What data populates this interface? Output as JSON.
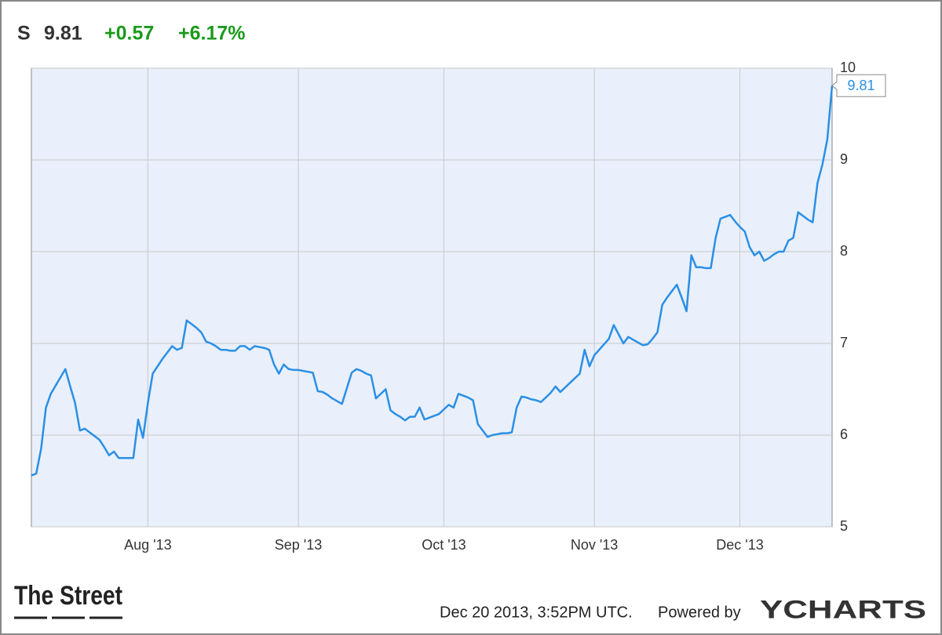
{
  "header": {
    "symbol": "S",
    "price": "9.81",
    "change": "+0.57",
    "change_pct": "+6.17%"
  },
  "chart_data": {
    "type": "line",
    "categories": [
      null,
      null,
      null,
      null,
      null,
      null,
      null,
      null,
      null,
      null,
      null,
      null,
      null,
      null,
      null,
      null,
      null,
      null,
      null,
      null,
      null,
      null,
      null,
      null,
      "Aug '13",
      null,
      null,
      null,
      null,
      null,
      null,
      null,
      null,
      null,
      null,
      null,
      null,
      null,
      null,
      null,
      null,
      null,
      null,
      null,
      null,
      null,
      null,
      null,
      null,
      null,
      null,
      null,
      null,
      null,
      null,
      "Sep '13",
      null,
      null,
      null,
      null,
      null,
      null,
      null,
      null,
      null,
      null,
      null,
      null,
      null,
      null,
      null,
      null,
      null,
      null,
      null,
      null,
      null,
      null,
      null,
      null,
      null,
      null,
      null,
      null,
      null,
      "Oct '13",
      null,
      null,
      null,
      null,
      null,
      null,
      null,
      null,
      null,
      null,
      null,
      null,
      null,
      null,
      null,
      null,
      null,
      null,
      null,
      null,
      null,
      null,
      null,
      null,
      null,
      null,
      null,
      null,
      null,
      null,
      "Nov '13",
      null,
      null,
      null,
      null,
      null,
      null,
      null,
      null,
      null,
      null,
      null,
      null,
      null,
      null,
      null,
      null,
      null,
      null,
      null,
      null,
      null,
      null,
      null,
      null,
      null,
      null,
      null,
      null,
      null,
      "Dec '13",
      null,
      null,
      null,
      null,
      null,
      null,
      null,
      null,
      null,
      null,
      null,
      null,
      null,
      null,
      null,
      null,
      null,
      null,
      null
    ],
    "values": [
      5.56,
      5.58,
      5.85,
      6.3,
      6.45,
      6.54,
      6.63,
      6.72,
      6.53,
      6.35,
      6.05,
      6.07,
      6.03,
      5.99,
      5.95,
      5.87,
      5.78,
      5.82,
      5.75,
      5.75,
      5.75,
      5.75,
      6.17,
      5.97,
      6.35,
      6.67,
      6.75,
      6.83,
      6.9,
      6.97,
      6.93,
      6.95,
      7.25,
      7.21,
      7.17,
      7.12,
      7.02,
      7.0,
      6.97,
      6.93,
      6.93,
      6.92,
      6.92,
      6.97,
      6.97,
      6.93,
      6.97,
      6.96,
      6.95,
      6.93,
      6.77,
      6.67,
      6.77,
      6.72,
      6.71,
      6.71,
      6.7,
      6.69,
      6.68,
      6.48,
      6.47,
      6.44,
      6.4,
      6.37,
      6.34,
      6.51,
      6.68,
      6.72,
      6.7,
      6.67,
      6.65,
      6.4,
      6.45,
      6.5,
      6.27,
      6.23,
      6.2,
      6.16,
      6.2,
      6.2,
      6.3,
      6.17,
      6.19,
      6.21,
      6.23,
      6.28,
      6.33,
      6.3,
      6.45,
      6.43,
      6.41,
      6.38,
      6.12,
      6.05,
      5.98,
      6.0,
      6.01,
      6.02,
      6.02,
      6.03,
      6.3,
      6.42,
      6.41,
      6.39,
      6.38,
      6.36,
      6.41,
      6.46,
      6.53,
      6.47,
      6.52,
      6.57,
      6.62,
      6.67,
      6.93,
      6.75,
      6.87,
      6.93,
      6.99,
      7.05,
      7.2,
      7.1,
      7.0,
      7.07,
      7.04,
      7.01,
      6.98,
      6.99,
      7.05,
      7.12,
      7.42,
      7.5,
      7.57,
      7.64,
      7.5,
      7.35,
      7.96,
      7.83,
      7.83,
      7.82,
      7.82,
      8.15,
      8.36,
      8.38,
      8.4,
      8.33,
      8.27,
      8.22,
      8.05,
      7.96,
      8.0,
      7.9,
      7.93,
      7.97,
      8.0,
      8.0,
      8.12,
      8.15,
      8.43,
      8.39,
      8.35,
      8.32,
      8.75,
      8.95,
      9.22,
      9.81
    ],
    "color": "#2b8fe6",
    "ylim": [
      5,
      10
    ],
    "yticks": [
      5,
      6,
      7,
      8,
      9,
      10
    ],
    "grid": true
  },
  "footer": {
    "logo": "The Street",
    "timestamp": "Dec 20 2013, 3:52PM UTC.",
    "powered_by": "Powered by",
    "brand": "YCHARTS"
  }
}
